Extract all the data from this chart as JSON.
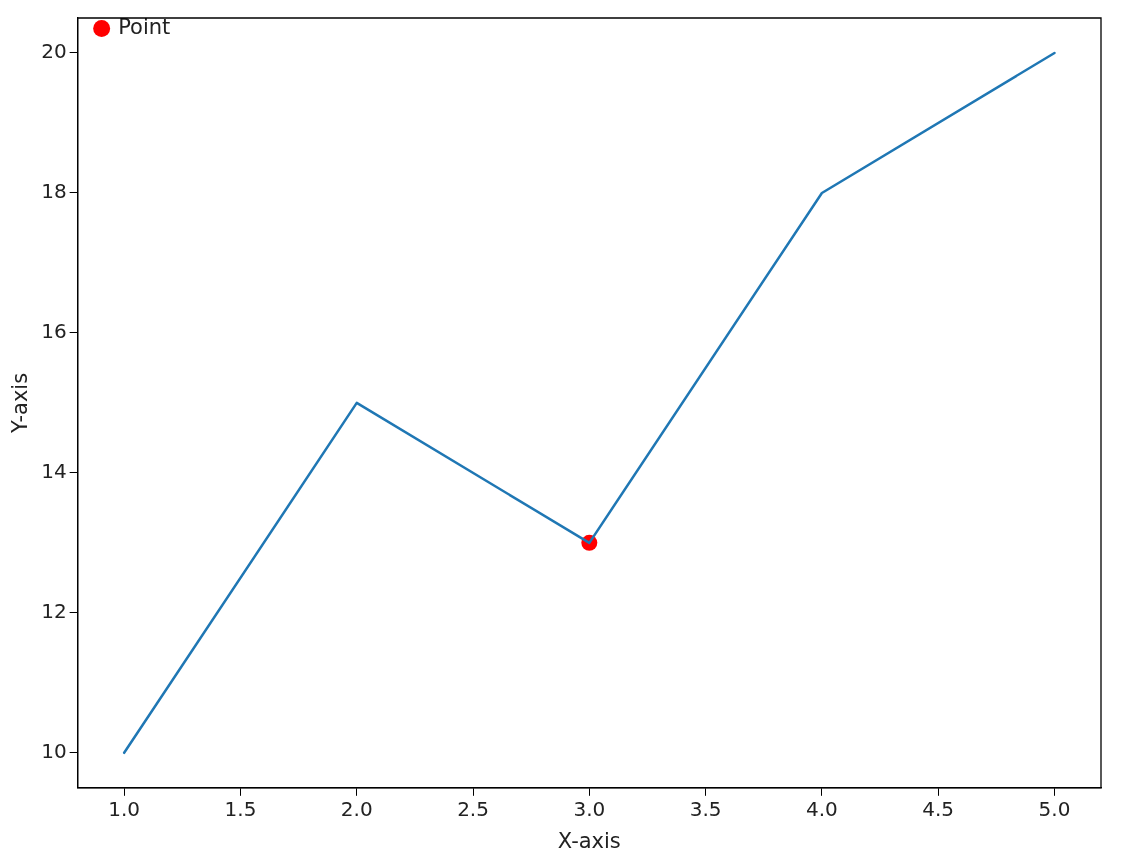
{
  "chart_data": {
    "type": "line",
    "xlabel": "X-axis",
    "ylabel": "Y-axis",
    "xlim": [
      0.8,
      5.2
    ],
    "xticks": [
      {
        "value": 1,
        "label": "1.0"
      },
      {
        "value": 1.5,
        "label": "1.5"
      },
      {
        "value": 2,
        "label": "2.0"
      },
      {
        "value": 2.5,
        "label": "2.5"
      },
      {
        "value": 3,
        "label": "3.0"
      },
      {
        "value": 3.5,
        "label": "3.5"
      },
      {
        "value": 4,
        "label": "4.0"
      },
      {
        "value": 4.5,
        "label": "4.5"
      },
      {
        "value": 5,
        "label": "5.0"
      }
    ],
    "ylim": [
      9.5,
      20.5
    ],
    "yticks": [
      10,
      12,
      14,
      16,
      18,
      20
    ],
    "grid": false,
    "legend": "top left",
    "series": [
      {
        "color": "#1f77b4",
        "marker": "none",
        "x": [
          1,
          2,
          3,
          4,
          5
        ],
        "values": [
          10,
          15,
          13,
          18,
          20
        ]
      },
      {
        "type": "scatter",
        "name": "Point",
        "color": "#ff0000",
        "marker": "circle",
        "x": [
          3
        ],
        "values": [
          13
        ]
      }
    ]
  }
}
